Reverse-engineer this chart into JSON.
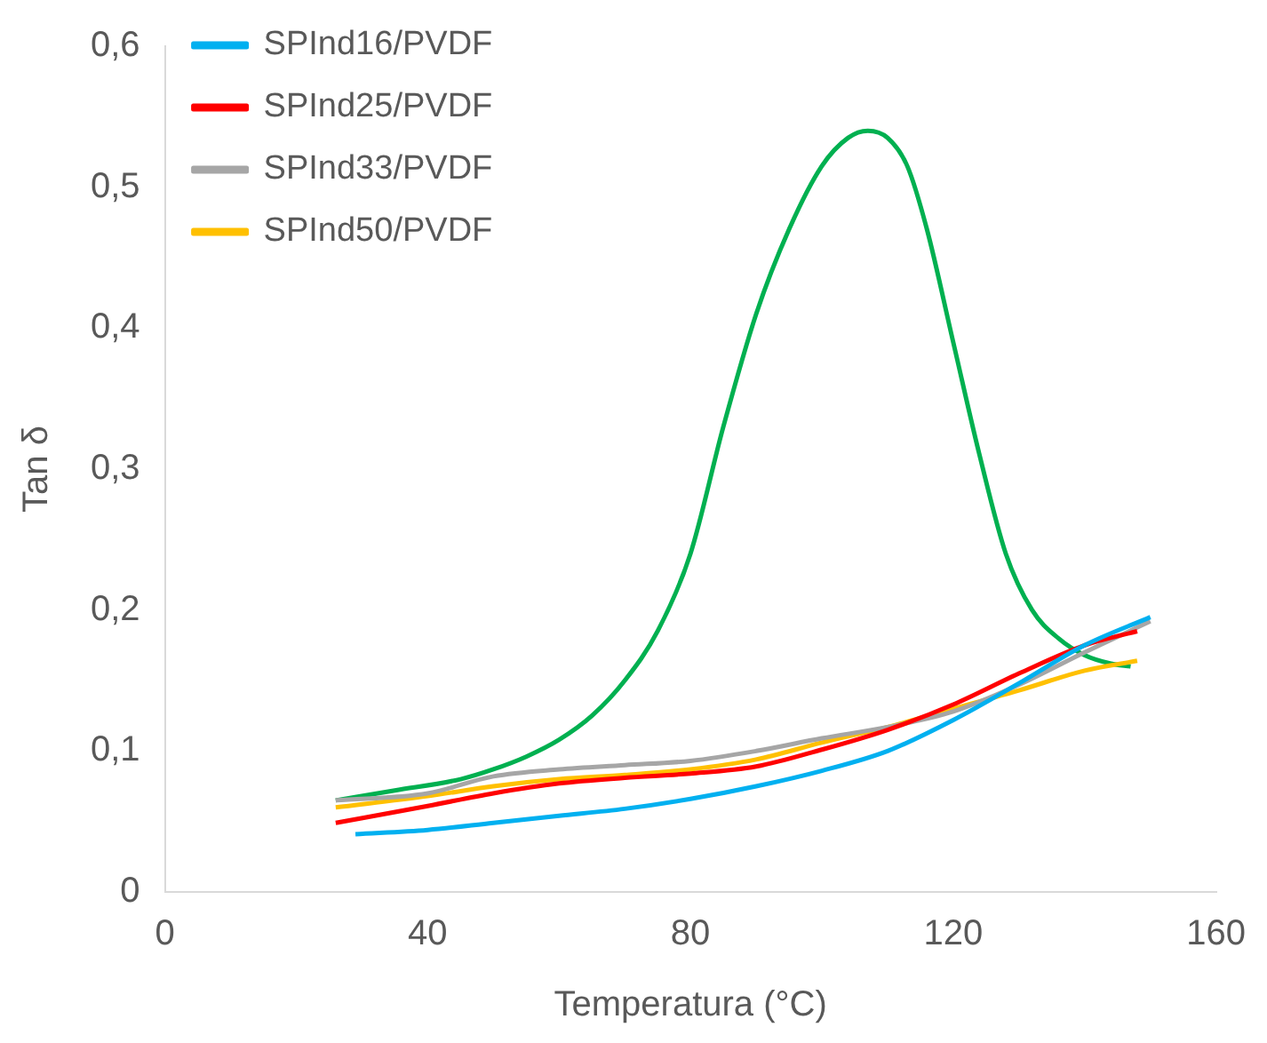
{
  "chart_data": {
    "type": "line",
    "xlabel": "Temperatura (°C)",
    "ylabel": "Tan δ",
    "legend": "top left",
    "grid": false,
    "marker": "none",
    "line_style": "solid",
    "xlim": [
      0,
      160
    ],
    "xticks": [
      0,
      40,
      80,
      120,
      160
    ],
    "ylim": [
      0,
      0.6
    ],
    "yticks": [
      {
        "value": 0,
        "label": "0"
      },
      {
        "value": 0.1,
        "label": "0,1"
      },
      {
        "value": 0.2,
        "label": "0,2"
      },
      {
        "value": 0.3,
        "label": "0,3"
      },
      {
        "value": 0.4,
        "label": "0,4"
      },
      {
        "value": 0.5,
        "label": "0,5"
      },
      {
        "value": 0.6,
        "label": "0,6"
      }
    ],
    "series": [
      {
        "name": "SPInd16/PVDF",
        "color": "#00b0f0",
        "x": [
          29,
          40,
          50,
          60,
          70,
          80,
          90,
          100,
          110,
          120,
          130,
          140,
          150
        ],
        "values": [
          0.041,
          0.044,
          0.049,
          0.054,
          0.059,
          0.066,
          0.075,
          0.086,
          0.1,
          0.122,
          0.148,
          0.175,
          0.195
        ]
      },
      {
        "name": "SPInd25/PVDF",
        "color": "#ff0000",
        "x": [
          26,
          40,
          50,
          60,
          70,
          80,
          90,
          100,
          110,
          120,
          130,
          140,
          148
        ],
        "values": [
          0.049,
          0.061,
          0.07,
          0.077,
          0.081,
          0.084,
          0.089,
          0.101,
          0.115,
          0.133,
          0.155,
          0.175,
          0.185
        ]
      },
      {
        "name": "SPInd33/PVDF",
        "color": "#a6a6a6",
        "x": [
          26,
          40,
          50,
          60,
          70,
          80,
          90,
          100,
          110,
          120,
          130,
          140,
          150
        ],
        "values": [
          0.065,
          0.07,
          0.082,
          0.087,
          0.09,
          0.093,
          0.1,
          0.109,
          0.117,
          0.128,
          0.147,
          0.17,
          0.192
        ]
      },
      {
        "name": "SPInd50/PVDF",
        "color": "#ffc000",
        "x": [
          26,
          40,
          50,
          60,
          70,
          80,
          90,
          100,
          110,
          120,
          130,
          140,
          148
        ],
        "values": [
          0.06,
          0.068,
          0.075,
          0.08,
          0.083,
          0.087,
          0.094,
          0.106,
          0.117,
          0.13,
          0.143,
          0.157,
          0.164
        ]
      },
      {
        "color": "#00b050",
        "x": [
          26,
          35,
          45,
          50,
          55,
          60,
          65,
          70,
          75,
          80,
          85,
          90,
          95,
          100,
          104,
          107,
          110,
          113,
          116,
          120,
          124,
          128,
          132,
          136,
          140,
          144,
          147
        ],
        "values": [
          0.065,
          0.072,
          0.08,
          0.087,
          0.096,
          0.108,
          0.125,
          0.15,
          0.185,
          0.24,
          0.33,
          0.41,
          0.47,
          0.515,
          0.535,
          0.54,
          0.535,
          0.515,
          0.47,
          0.39,
          0.31,
          0.24,
          0.2,
          0.18,
          0.168,
          0.162,
          0.16
        ]
      }
    ]
  }
}
